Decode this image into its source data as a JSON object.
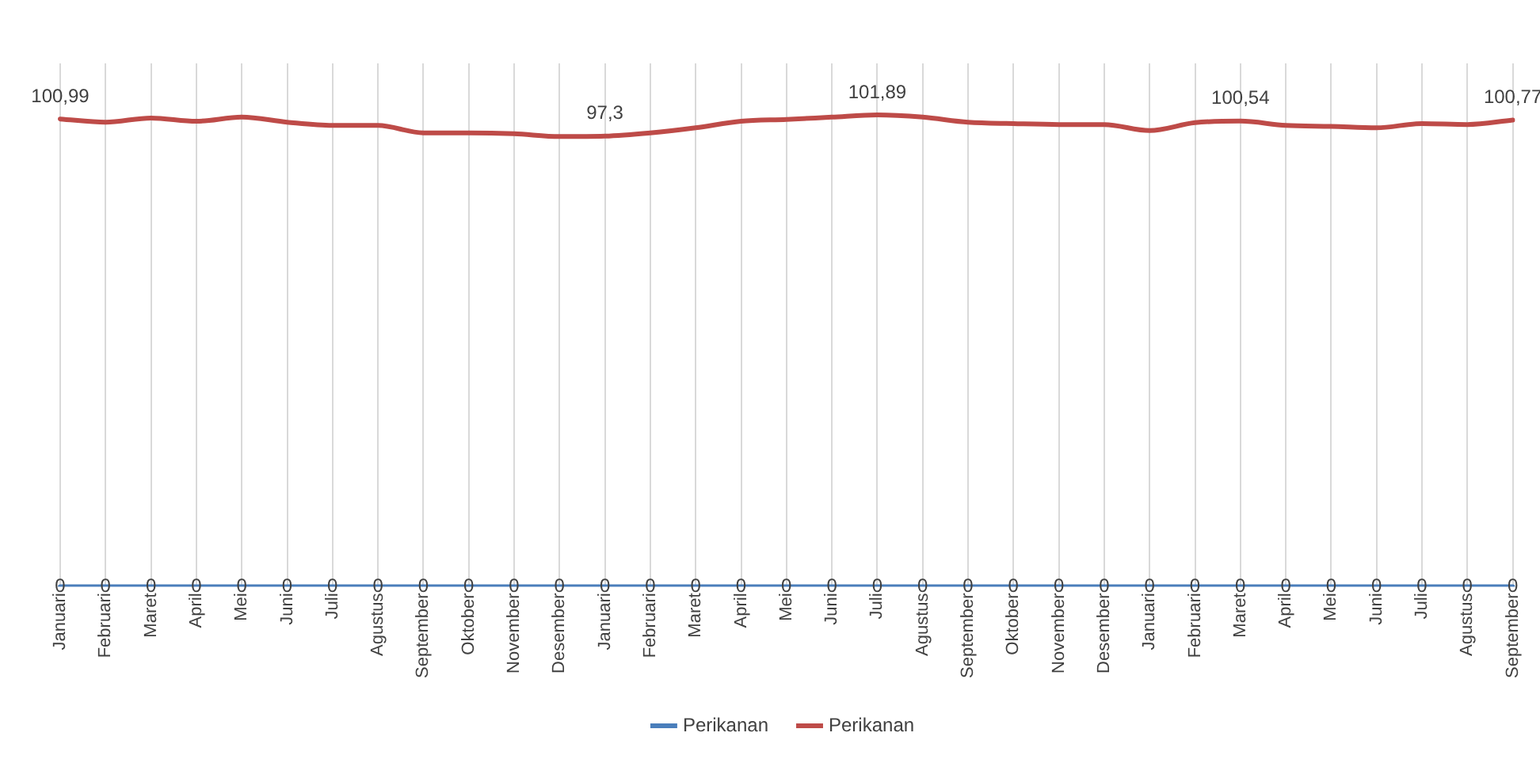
{
  "chart_data": {
    "type": "line",
    "categories": [
      "Januari",
      "Februari",
      "Maret",
      "April",
      "Mei",
      "Juni",
      "Juli",
      "Agustus",
      "September",
      "Oktober",
      "November",
      "Desember",
      "Januari",
      "Februari",
      "Maret",
      "April",
      "Mei",
      "Juni",
      "Juli",
      "Agustus",
      "September",
      "Oktober",
      "November",
      "Desember",
      "Januari",
      "Februari",
      "Maret",
      "April",
      "Mei",
      "Juni",
      "Juli",
      "Agustus",
      "September"
    ],
    "series": [
      {
        "name": "Perikanan",
        "color": "#4a7ebb",
        "values": [
          0,
          0,
          0,
          0,
          0,
          0,
          0,
          0,
          0,
          0,
          0,
          0,
          0,
          0,
          0,
          0,
          0,
          0,
          0,
          0,
          0,
          0,
          0,
          0,
          0,
          0,
          0,
          0,
          0,
          0,
          0,
          0,
          0
        ],
        "value_labels": [
          "0",
          "0",
          "0",
          "0",
          "0",
          "0",
          "0",
          "0",
          "0",
          "0",
          "0",
          "0",
          "0",
          "0",
          "0",
          "0",
          "0",
          "0",
          "0",
          "0",
          "0",
          "0",
          "0",
          "0",
          "0",
          "0",
          "0",
          "0",
          "0",
          "0",
          "0",
          "0",
          "0"
        ]
      },
      {
        "name": "Perikanan",
        "color": "#be4b48",
        "values": [
          100.99,
          100.3,
          101.2,
          100.5,
          101.4,
          100.3,
          99.6,
          99.6,
          98.0,
          98.0,
          97.8,
          97.2,
          97.3,
          98.0,
          99.1,
          100.5,
          100.9,
          101.4,
          101.89,
          101.4,
          100.3,
          100.0,
          99.8,
          99.8,
          98.5,
          100.2,
          100.54,
          99.6,
          99.4,
          99.1,
          100.0,
          99.8,
          100.77
        ],
        "value_labels": [
          "100,99",
          null,
          null,
          null,
          null,
          null,
          null,
          null,
          null,
          null,
          null,
          null,
          "97,3",
          null,
          null,
          null,
          null,
          null,
          "101,89",
          null,
          null,
          null,
          null,
          null,
          null,
          null,
          "100,54",
          null,
          null,
          null,
          null,
          null,
          "100,77"
        ]
      }
    ],
    "ylim": [
      0,
      113
    ],
    "tick_labels": "x",
    "grid": "x",
    "legend": "bottom",
    "marker": "none",
    "line_style": "solid"
  }
}
